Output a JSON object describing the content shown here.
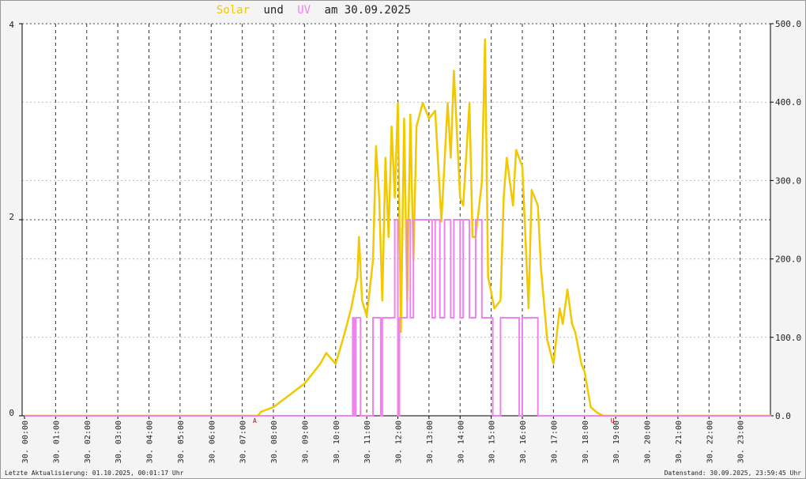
{
  "chart_data": {
    "type": "line",
    "title_joiner": "und",
    "title_date": "am 30.09.2025",
    "footer_left": "Letzte Aktualisierung: 01.10.2025, 00:01:17 Uhr",
    "footer_right": "Datenstand: 30.09.2025, 23:59:45 Uhr",
    "xlim": [
      0,
      24
    ],
    "xticks": [
      {
        "value": 0,
        "label": "30. 00:00"
      },
      {
        "value": 1,
        "label": "30. 01:00"
      },
      {
        "value": 2,
        "label": "30. 02:00"
      },
      {
        "value": 3,
        "label": "30. 03:00"
      },
      {
        "value": 4,
        "label": "30. 04:00"
      },
      {
        "value": 5,
        "label": "30. 05:00"
      },
      {
        "value": 6,
        "label": "30. 06:00"
      },
      {
        "value": 7,
        "label": "30. 07:00"
      },
      {
        "value": 8,
        "label": "30. 08:00"
      },
      {
        "value": 9,
        "label": "30. 09:00"
      },
      {
        "value": 10,
        "label": "30. 10:00"
      },
      {
        "value": 11,
        "label": "30. 11:00"
      },
      {
        "value": 12,
        "label": "30. 12:00"
      },
      {
        "value": 13,
        "label": "30. 13:00"
      },
      {
        "value": 14,
        "label": "30. 14:00"
      },
      {
        "value": 15,
        "label": "30. 15:00"
      },
      {
        "value": 16,
        "label": "30. 16:00"
      },
      {
        "value": 17,
        "label": "30. 17:00"
      },
      {
        "value": 18,
        "label": "30. 18:00"
      },
      {
        "value": 19,
        "label": "30. 19:00"
      },
      {
        "value": 20,
        "label": "30. 20:00"
      },
      {
        "value": 21,
        "label": "30. 21:00"
      },
      {
        "value": 22,
        "label": "30. 22:00"
      },
      {
        "value": 23,
        "label": "30. 23:00"
      }
    ],
    "ylim": [
      0,
      4
    ],
    "yticks": [
      0,
      2,
      4
    ],
    "y2lim": [
      0,
      500
    ],
    "y2ticks": [
      {
        "value": 0,
        "label": "0.0"
      },
      {
        "value": 100,
        "label": "100.0"
      },
      {
        "value": 200,
        "label": "200.0"
      },
      {
        "value": 300,
        "label": "300.0"
      },
      {
        "value": 400,
        "label": "400.0"
      },
      {
        "value": 500,
        "label": "500.0"
      }
    ],
    "grid": true,
    "annotations": [
      {
        "label": "A",
        "x": 7.4
      },
      {
        "label": "U",
        "x": 18.9
      }
    ],
    "series": [
      {
        "name": "Solar",
        "color": "#f2c800",
        "axis": "y2",
        "x": [
          0,
          7.5,
          7.6,
          8.0,
          8.5,
          9.0,
          9.5,
          9.7,
          10.0,
          10.3,
          10.5,
          10.7,
          10.75,
          10.85,
          11.0,
          11.2,
          11.3,
          11.4,
          11.5,
          11.6,
          11.7,
          11.8,
          11.9,
          12.0,
          12.1,
          12.2,
          12.3,
          12.4,
          12.5,
          12.6,
          12.8,
          13.0,
          13.2,
          13.4,
          13.6,
          13.7,
          13.8,
          14.0,
          14.1,
          14.3,
          14.4,
          14.5,
          14.7,
          14.8,
          14.9,
          15.1,
          15.3,
          15.4,
          15.5,
          15.7,
          15.8,
          16.0,
          16.2,
          16.3,
          16.5,
          16.6,
          16.8,
          17.0,
          17.2,
          17.3,
          17.45,
          17.6,
          17.7,
          17.9,
          18.0,
          18.2,
          18.4,
          18.6,
          24
        ],
        "values": [
          0,
          0,
          5,
          11,
          26,
          41,
          66,
          80,
          66,
          107,
          137,
          177,
          228,
          147,
          127,
          198,
          344,
          278,
          147,
          329,
          228,
          369,
          278,
          399,
          107,
          379,
          147,
          384,
          198,
          369,
          399,
          379,
          389,
          248,
          399,
          329,
          440,
          278,
          268,
          399,
          228,
          228,
          298,
          480,
          177,
          137,
          147,
          278,
          329,
          268,
          339,
          318,
          137,
          288,
          268,
          188,
          97,
          66,
          137,
          117,
          161,
          117,
          107,
          66,
          56,
          11,
          4,
          0,
          0
        ]
      },
      {
        "name": "UV",
        "color": "#ee82ee",
        "x": [
          0,
          10.55,
          10.55,
          10.6,
          10.6,
          10.65,
          10.65,
          10.8,
          10.8,
          11.2,
          11.2,
          11.45,
          11.45,
          11.5,
          11.5,
          11.9,
          11.9,
          12.0,
          12.0,
          12.05,
          12.05,
          12.3,
          12.3,
          12.4,
          12.4,
          12.5,
          12.5,
          13.1,
          13.1,
          13.2,
          13.2,
          13.35,
          13.35,
          13.5,
          13.5,
          13.7,
          13.7,
          13.8,
          13.8,
          14.0,
          14.0,
          14.1,
          14.1,
          14.3,
          14.3,
          14.5,
          14.5,
          14.7,
          14.7,
          15.05,
          15.05,
          15.3,
          15.3,
          15.9,
          15.9,
          16.0,
          16.0,
          16.5,
          16.5,
          24
        ],
        "values": [
          0,
          0,
          1,
          1,
          0,
          0,
          1,
          1,
          0,
          0,
          1,
          1,
          0,
          0,
          1,
          1,
          2,
          2,
          0,
          0,
          1,
          1,
          2,
          2,
          1,
          1,
          2,
          2,
          1,
          1,
          2,
          2,
          1,
          1,
          2,
          2,
          1,
          1,
          2,
          2,
          1,
          1,
          2,
          2,
          1,
          1,
          2,
          2,
          1,
          1,
          0,
          0,
          1,
          1,
          0,
          0,
          1,
          1,
          0,
          0
        ]
      }
    ]
  }
}
